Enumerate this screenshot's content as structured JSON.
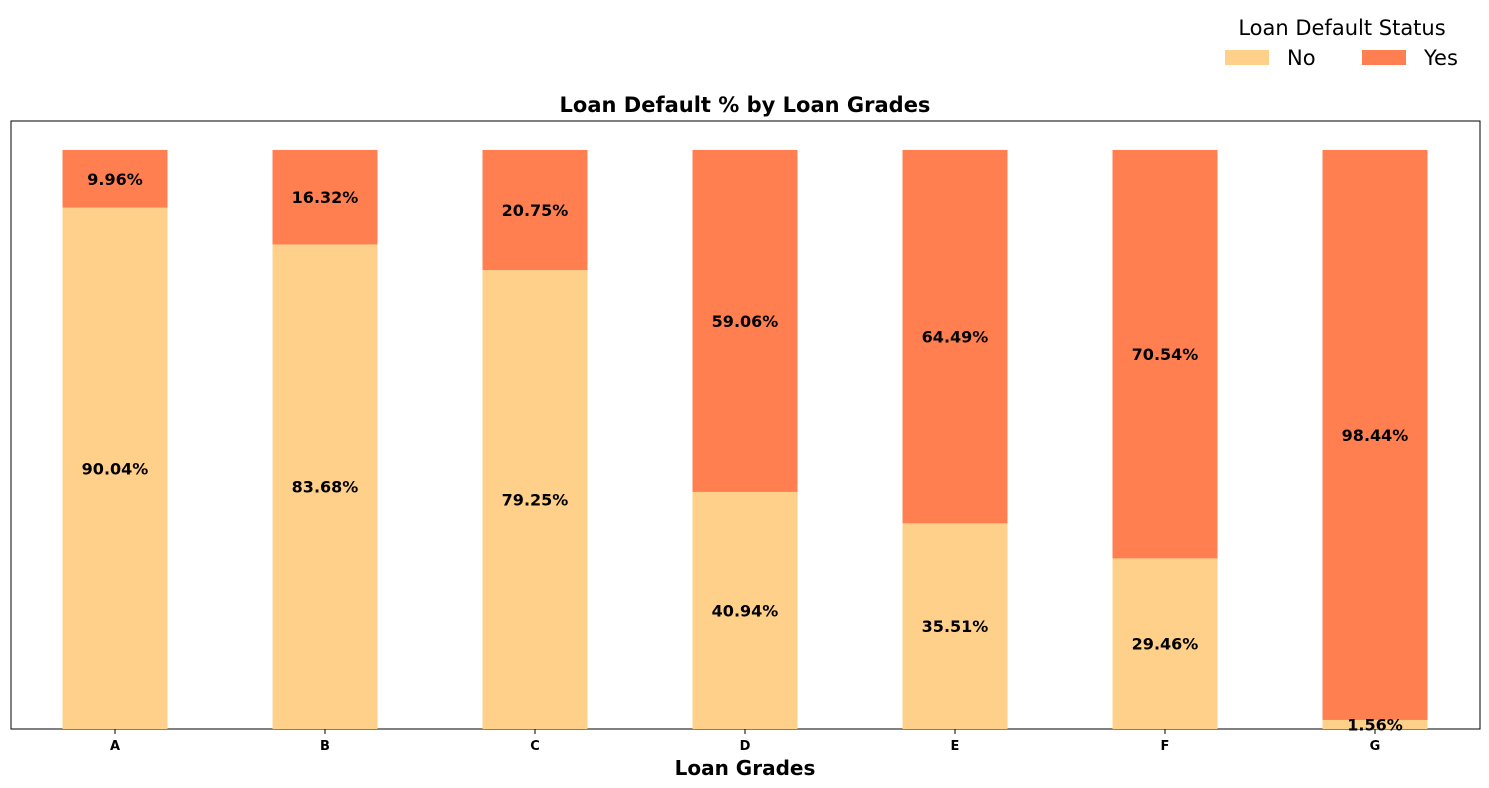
{
  "chart_data": {
    "type": "bar",
    "stacked": true,
    "title": "Loan Default % by Loan Grades",
    "xlabel": "Loan Grades",
    "ylabel": "",
    "ylim": [
      0,
      105
    ],
    "categories": [
      "A",
      "B",
      "C",
      "D",
      "E",
      "F",
      "G"
    ],
    "series": [
      {
        "name": "No",
        "color": "#FFD08A",
        "values": [
          90.04,
          83.68,
          79.25,
          40.94,
          35.51,
          29.46,
          1.56
        ]
      },
      {
        "name": "Yes",
        "color": "#FF7F50",
        "values": [
          9.96,
          16.32,
          20.75,
          59.06,
          64.49,
          70.54,
          98.44
        ]
      }
    ],
    "data_labels": {
      "No": [
        "90.04%",
        "83.68%",
        "79.25%",
        "40.94%",
        "35.51%",
        "29.46%",
        "1.56%"
      ],
      "Yes": [
        "9.96%",
        "16.32%",
        "20.75%",
        "59.06%",
        "64.49%",
        "70.54%",
        "98.44%"
      ]
    },
    "legend": {
      "title": "Loan Default Status",
      "placement": "top-right",
      "entries": [
        "No",
        "Yes"
      ]
    },
    "grid": false
  }
}
